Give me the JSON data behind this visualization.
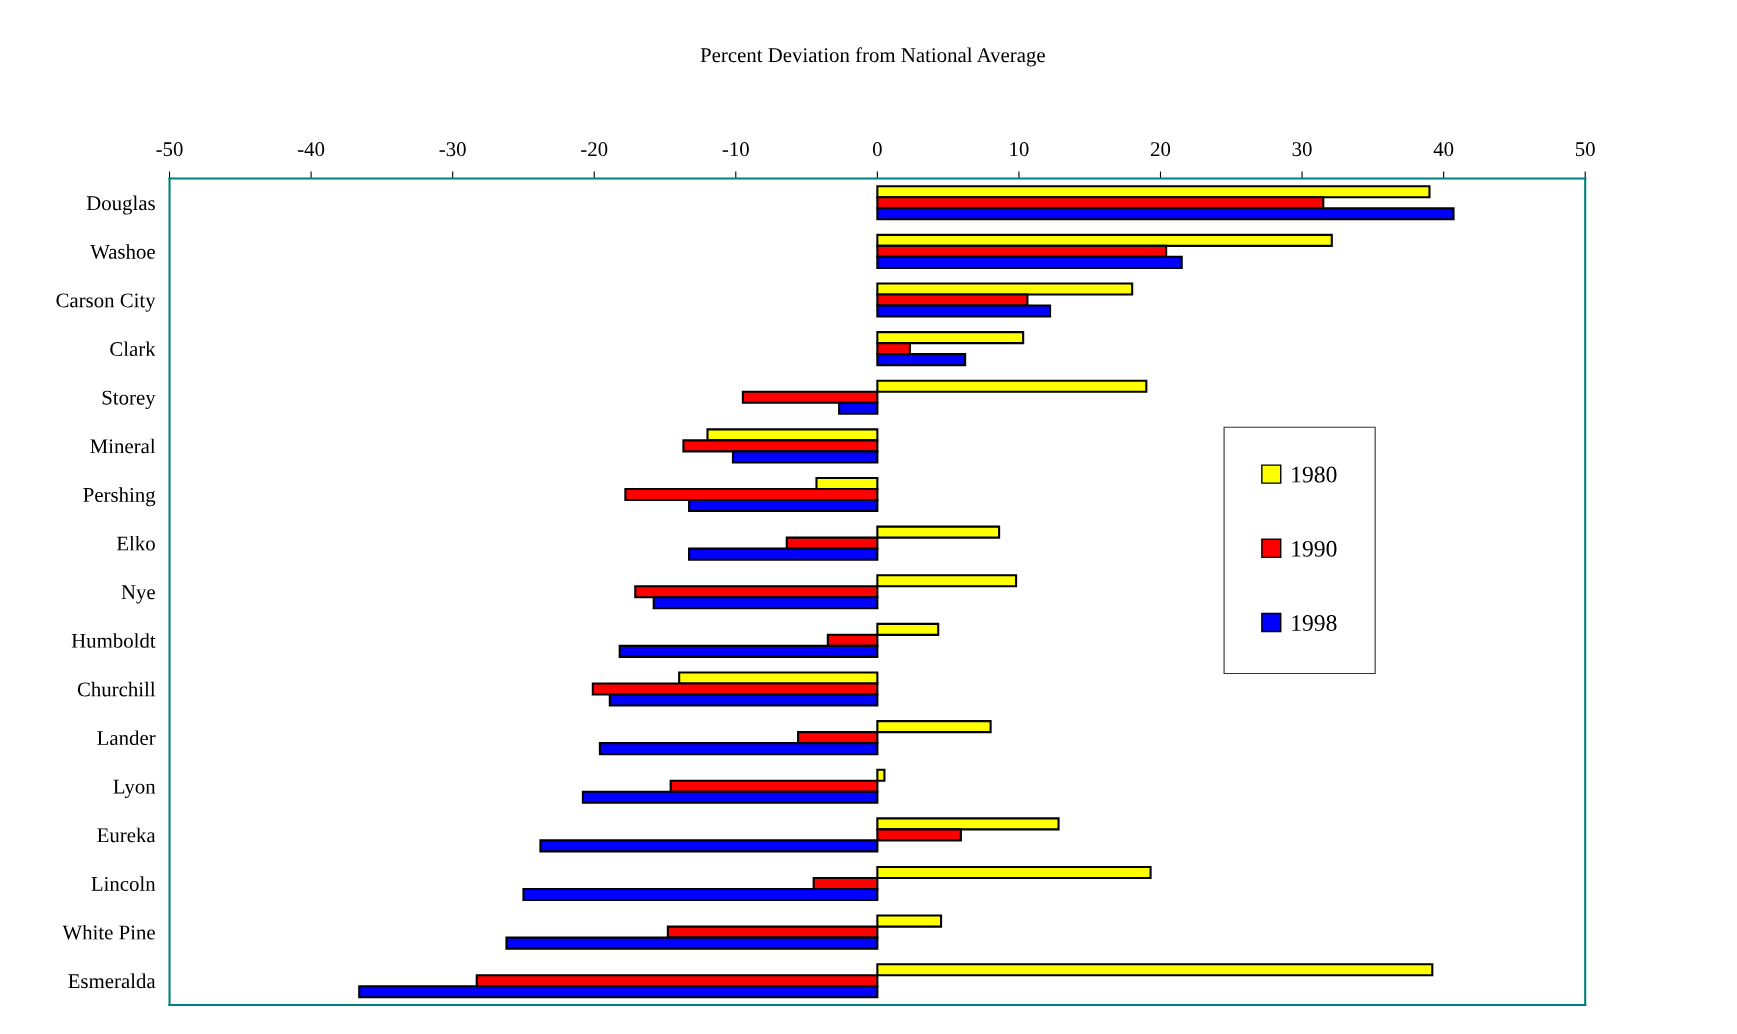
{
  "chart_data": {
    "type": "bar",
    "orientation": "horizontal",
    "title": "Percent Deviation from National Average",
    "categories": [
      "Douglas",
      "Washoe",
      "Carson City",
      "Clark",
      "Storey",
      "Mineral",
      "Pershing",
      "Elko",
      "Nye",
      "Humboldt",
      "Churchill",
      "Lander",
      "Lyon",
      "Eureka",
      "Lincoln",
      "White Pine",
      "Esmeralda"
    ],
    "series": [
      {
        "name": "1980",
        "color": "#ffff00",
        "values": [
          39.0,
          32.1,
          18.0,
          10.3,
          19.0,
          -12.0,
          -4.3,
          8.6,
          9.8,
          4.3,
          -14.0,
          8.0,
          0.5,
          12.8,
          19.3,
          4.5,
          39.2
        ]
      },
      {
        "name": "1990",
        "color": "#ff0000",
        "values": [
          31.5,
          20.4,
          10.6,
          2.3,
          -9.5,
          -13.7,
          -17.8,
          -6.4,
          -17.1,
          -3.5,
          -20.1,
          -5.6,
          -14.6,
          5.9,
          -4.5,
          -14.8,
          -28.3
        ]
      },
      {
        "name": "1998",
        "color": "#0000ff",
        "values": [
          40.7,
          21.5,
          12.2,
          6.2,
          -2.7,
          -10.2,
          -13.3,
          -13.3,
          -15.8,
          -18.2,
          -18.9,
          -19.6,
          -20.8,
          -23.8,
          -25.0,
          -26.2,
          -36.6
        ]
      }
    ],
    "xlim": [
      -50,
      50
    ],
    "xticks": [
      -50,
      -40,
      -30,
      -20,
      -10,
      0,
      10,
      20,
      30,
      40,
      50
    ],
    "grid": false,
    "legend": "right"
  }
}
